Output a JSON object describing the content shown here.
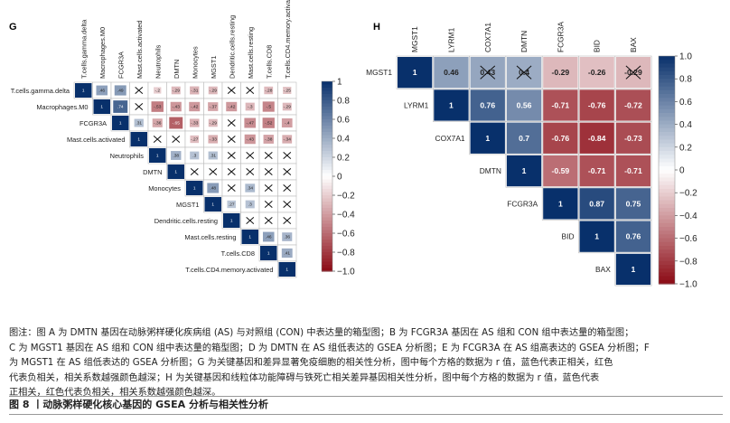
{
  "caption": {
    "lines": [
      "图注：图 A 为 DMTN 基因在动脉粥样硬化疾病组 (AS) 与对照组 (CON) 中表达量的箱型图；B 为 FCGR3A 基因在 AS 组和 CON 组中表达量的箱型图；",
      "C 为 MGST1 基因在 AS 组和 CON 组中表达量的箱型图；D 为 DMTN 在 AS 组低表达的 GSEA 分析图；E 为 FCGR3A 在 AS 组高表达的 GSEA 分析图；F",
      "为 MGST1 在 AS 组低表达的 GSEA 分析图；G 为关键基因和差异显著免疫细胞的相关性分析，图中每个方格的数据为 r 值，蓝色代表正相关，红色",
      "代表负相关，相关系数越强颜色越深；H 为关键基因和线粒体功能障碍与铁死亡相关差异基因相关性分析，图中每个方格的数据为 r 值，蓝色代表",
      "正相关，红色代表负相关，相关系数越强颜色越深。"
    ],
    "figure_title": "图 8 丨动脉粥样硬化核心基因的 GSEA 分析与相关性分析"
  },
  "colors": {
    "positive": "#08306b",
    "neutral": "#ffffff",
    "negative": "#8b0a14"
  },
  "chart_data": [
    {
      "type": "heatmap",
      "panel": "G",
      "layout": "upper-triangle correlation matrix",
      "labels": [
        "T.cells.gamma.delta",
        "Macrophages.M0",
        "FCGR3A",
        "Mast.cells.activated",
        "Neutrophils",
        "DMTN",
        "Monocytes",
        "MGST1",
        "Dendritic.cells.resting",
        "Mast.cells.resting",
        "T.cells.CD8",
        "T.cells.CD4.memory.activated"
      ],
      "values": [
        [
          1,
          0.46,
          0.49,
          null,
          -0.2,
          -0.29,
          -0.31,
          -0.29,
          null,
          null,
          -0.28,
          -0.25
        ],
        [
          null,
          1,
          0.74,
          null,
          -0.53,
          -0.43,
          -0.42,
          -0.37,
          -0.42,
          -0.3,
          -0.5,
          -0.29
        ],
        [
          null,
          null,
          1,
          0.31,
          -0.36,
          -0.65,
          -0.33,
          -0.29,
          null,
          -0.47,
          -0.52,
          -0.4
        ],
        [
          null,
          null,
          null,
          1,
          null,
          null,
          -0.27,
          -0.33,
          null,
          -0.43,
          -0.38,
          -0.34
        ],
        [
          null,
          null,
          null,
          null,
          1,
          0.38,
          0.3,
          0.31,
          null,
          null,
          null,
          null
        ],
        [
          null,
          null,
          null,
          null,
          null,
          1,
          null,
          null,
          null,
          null,
          null,
          null
        ],
        [
          null,
          null,
          null,
          null,
          null,
          null,
          1,
          0.48,
          null,
          0.34,
          null,
          null
        ],
        [
          null,
          null,
          null,
          null,
          null,
          null,
          null,
          1,
          0.27,
          0.3,
          null,
          null
        ],
        [
          null,
          null,
          null,
          null,
          null,
          null,
          null,
          null,
          1,
          null,
          null,
          null
        ],
        [
          null,
          null,
          null,
          null,
          null,
          null,
          null,
          null,
          null,
          1,
          0.46,
          0.36
        ],
        [
          null,
          null,
          null,
          null,
          null,
          null,
          null,
          null,
          null,
          null,
          1,
          0.41
        ],
        [
          null,
          null,
          null,
          null,
          null,
          null,
          null,
          null,
          null,
          null,
          null,
          1
        ]
      ],
      "crossed": [
        [
          0,
          3
        ],
        [
          0,
          8
        ],
        [
          0,
          9
        ],
        [
          1,
          3
        ],
        [
          2,
          8
        ],
        [
          3,
          4
        ],
        [
          3,
          5
        ],
        [
          3,
          8
        ],
        [
          4,
          8
        ],
        [
          4,
          9
        ],
        [
          4,
          10
        ],
        [
          4,
          11
        ],
        [
          5,
          6
        ],
        [
          5,
          7
        ],
        [
          5,
          8
        ],
        [
          5,
          9
        ],
        [
          5,
          10
        ],
        [
          5,
          11
        ],
        [
          6,
          8
        ],
        [
          6,
          10
        ],
        [
          6,
          11
        ],
        [
          7,
          10
        ],
        [
          7,
          11
        ],
        [
          8,
          9
        ],
        [
          8,
          10
        ],
        [
          8,
          11
        ]
      ],
      "colorbar": {
        "range": [
          -1,
          1
        ],
        "ticks": [
          1.0,
          0.8,
          0.6,
          0.4,
          0.2,
          0,
          -0.2,
          -0.4,
          -0.6,
          -0.8,
          -1.0
        ],
        "tick_labels": [
          "1",
          "0.8",
          "0.6",
          "0.4",
          "0.2",
          "0",
          "−0.2",
          "−0.4",
          "−0.6",
          "−0.8",
          "−1.0"
        ]
      }
    },
    {
      "type": "heatmap",
      "panel": "H",
      "layout": "upper-triangle correlation matrix",
      "labels": [
        "MGST1",
        "LYRM1",
        "COX7A1",
        "DMTN",
        "FCGR3A",
        "BID",
        "BAX"
      ],
      "values": [
        [
          1,
          0.46,
          0.43,
          0.4,
          -0.29,
          -0.26,
          -0.29
        ],
        [
          null,
          1,
          0.76,
          0.56,
          -0.71,
          -0.76,
          -0.72
        ],
        [
          null,
          null,
          1,
          0.7,
          -0.76,
          -0.84,
          -0.73
        ],
        [
          null,
          null,
          null,
          1,
          -0.59,
          -0.71,
          -0.71
        ],
        [
          null,
          null,
          null,
          null,
          1,
          0.87,
          0.75
        ],
        [
          null,
          null,
          null,
          null,
          null,
          1,
          0.76
        ],
        [
          null,
          null,
          null,
          null,
          null,
          null,
          1
        ]
      ],
      "cell_labels": [
        [
          "1",
          "0.46",
          "0.43",
          "0.4",
          "-0.29",
          "-0.26",
          "-0.29"
        ],
        [
          null,
          "1",
          "0.76",
          "0.56",
          "-0.71",
          "-0.76",
          "-0.72"
        ],
        [
          null,
          null,
          "1",
          "0.7",
          "-0.76",
          "-0.84",
          "-0.73"
        ],
        [
          null,
          null,
          null,
          "1",
          "-0.59",
          "-0.71",
          "-0.71"
        ],
        [
          null,
          null,
          null,
          null,
          "1",
          "0.87",
          "0.75"
        ],
        [
          null,
          null,
          null,
          null,
          null,
          "1",
          "0.76"
        ],
        [
          null,
          null,
          null,
          null,
          null,
          null,
          "1"
        ]
      ],
      "crossed": [
        [
          0,
          2
        ],
        [
          0,
          3
        ],
        [
          0,
          6
        ]
      ],
      "colorbar": {
        "range": [
          -1,
          1
        ],
        "ticks": [
          1.0,
          0.8,
          0.6,
          0.4,
          0.2,
          0,
          -0.2,
          -0.4,
          -0.6,
          -0.8,
          -1.0
        ],
        "tick_labels": [
          "1.0",
          "0.8",
          "0.6",
          "0.4",
          "0.2",
          "0",
          "−0.2",
          "−0.4",
          "−0.6",
          "−0.8",
          "−1.0"
        ]
      }
    }
  ]
}
